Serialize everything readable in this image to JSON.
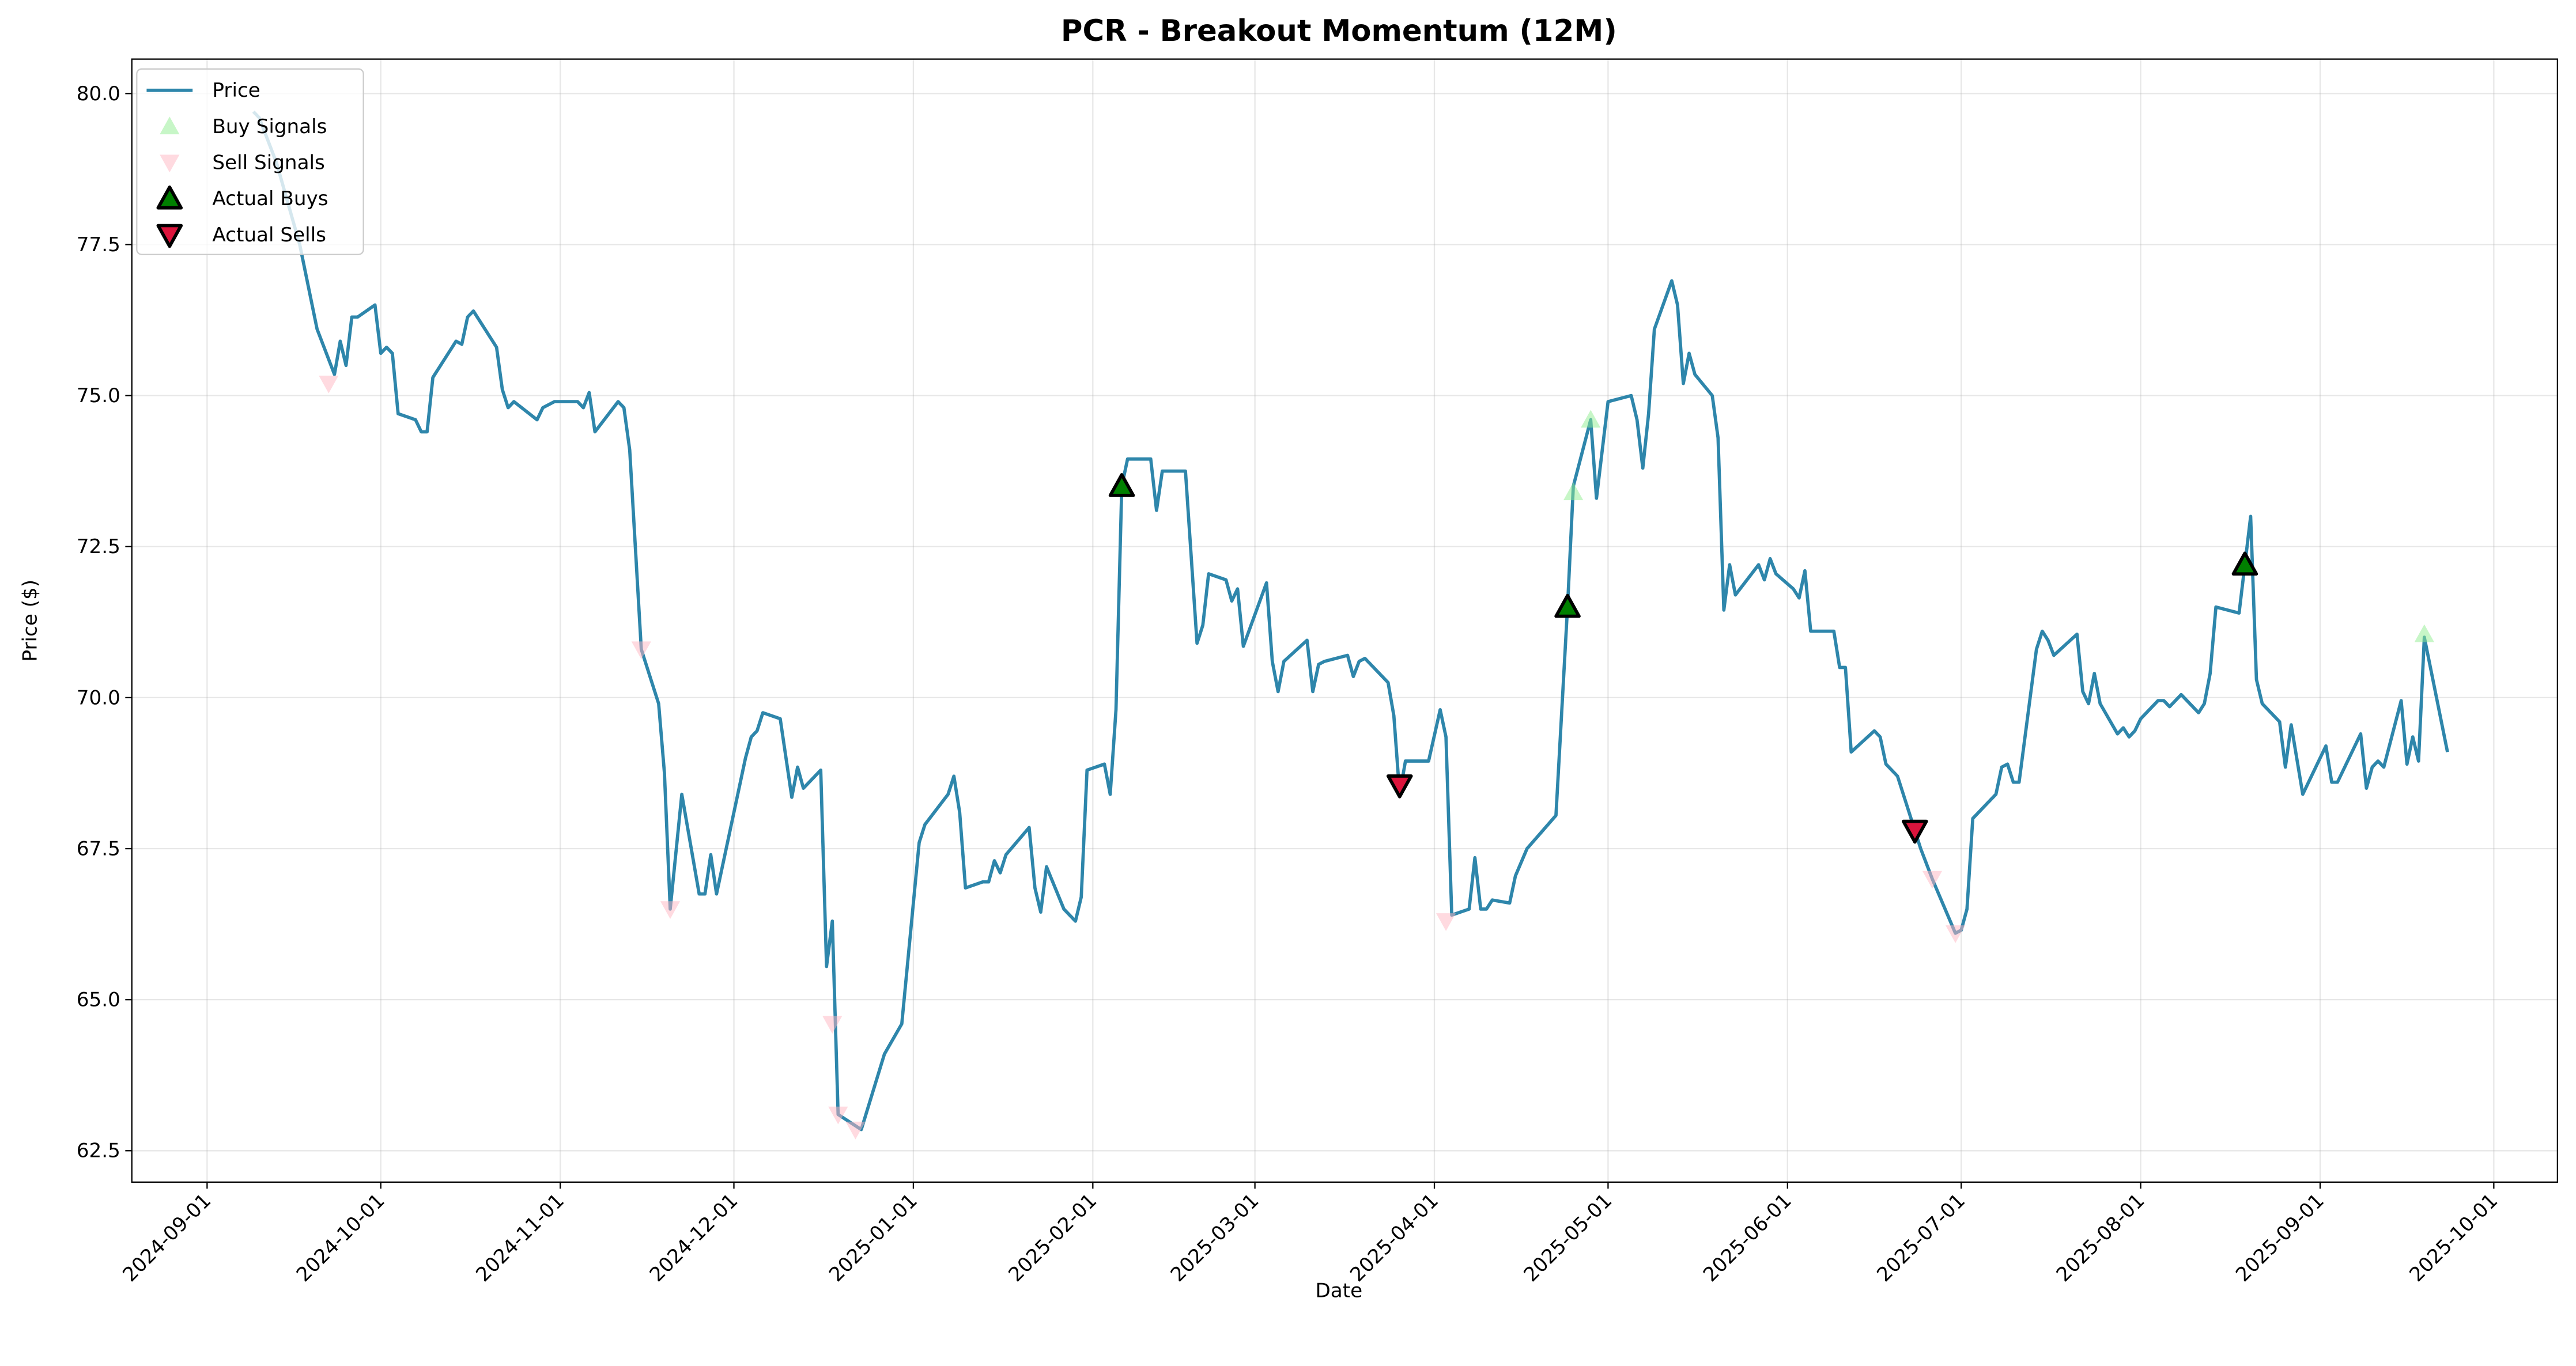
{
  "chart_data": {
    "type": "line",
    "title": "PCR - Breakout Momentum (12M)",
    "xlabel": "Date",
    "ylabel": "Price ($)",
    "xlim": [
      "2024-08-19",
      "2025-10-12"
    ],
    "xticks": [
      "2024-09-01",
      "2024-10-01",
      "2024-11-01",
      "2024-12-01",
      "2025-01-01",
      "2025-02-01",
      "2025-03-01",
      "2025-04-01",
      "2025-05-01",
      "2025-06-01",
      "2025-07-01",
      "2025-08-01",
      "2025-09-01",
      "2025-10-01"
    ],
    "ylim": [
      61.98,
      80.57
    ],
    "yticks": [
      {
        "value": 62.5,
        "label": "62.5"
      },
      {
        "value": 65,
        "label": "65.0"
      },
      {
        "value": 67.5,
        "label": "67.5"
      },
      {
        "value": 70,
        "label": "70.0"
      },
      {
        "value": 72.5,
        "label": "72.5"
      },
      {
        "value": 75,
        "label": "75.0"
      },
      {
        "value": 77.5,
        "label": "77.5"
      },
      {
        "value": 80,
        "label": "80.0"
      }
    ],
    "grid": true,
    "legend": "upper left",
    "series": [
      {
        "name": "Price",
        "type": "line",
        "color": "#2e86ab",
        "x": [
          "2024-09-09",
          "2024-09-10",
          "2024-09-13",
          "2024-09-17",
          "2024-09-20",
          "2024-09-23",
          "2024-09-24",
          "2024-09-25",
          "2024-09-26",
          "2024-09-27",
          "2024-09-30",
          "2024-10-01",
          "2024-10-02",
          "2024-10-03",
          "2024-10-04",
          "2024-10-07",
          "2024-10-08",
          "2024-10-09",
          "2024-10-10",
          "2024-10-14",
          "2024-10-15",
          "2024-10-16",
          "2024-10-17",
          "2024-10-21",
          "2024-10-22",
          "2024-10-23",
          "2024-10-24",
          "2024-10-28",
          "2024-10-29",
          "2024-10-31",
          "2024-11-04",
          "2024-11-05",
          "2024-11-06",
          "2024-11-07",
          "2024-11-11",
          "2024-11-12",
          "2024-11-13",
          "2024-11-15",
          "2024-11-18",
          "2024-11-19",
          "2024-11-20",
          "2024-11-22",
          "2024-11-25",
          "2024-11-26",
          "2024-11-27",
          "2024-11-28",
          "2024-12-03",
          "2024-12-04",
          "2024-12-05",
          "2024-12-06",
          "2024-12-09",
          "2024-12-11",
          "2024-12-12",
          "2024-12-13",
          "2024-12-16",
          "2024-12-17",
          "2024-12-18",
          "2024-12-19",
          "2024-12-23",
          "2024-12-27",
          "2024-12-30",
          "2025-01-02",
          "2025-01-03",
          "2025-01-07",
          "2025-01-08",
          "2025-01-09",
          "2025-01-10",
          "2025-01-13",
          "2025-01-14",
          "2025-01-15",
          "2025-01-16",
          "2025-01-17",
          "2025-01-21",
          "2025-01-22",
          "2025-01-23",
          "2025-01-24",
          "2025-01-27",
          "2025-01-29",
          "2025-01-30",
          "2025-01-31",
          "2025-02-03",
          "2025-02-04",
          "2025-02-05",
          "2025-02-06",
          "2025-02-07",
          "2025-02-10",
          "2025-02-11",
          "2025-02-12",
          "2025-02-13",
          "2025-02-17",
          "2025-02-19",
          "2025-02-20",
          "2025-02-21",
          "2025-02-24",
          "2025-02-25",
          "2025-02-26",
          "2025-02-27",
          "2025-03-03",
          "2025-03-04",
          "2025-03-05",
          "2025-03-06",
          "2025-03-10",
          "2025-03-11",
          "2025-03-12",
          "2025-03-13",
          "2025-03-17",
          "2025-03-18",
          "2025-03-19",
          "2025-03-20",
          "2025-03-24",
          "2025-03-25",
          "2025-03-26",
          "2025-03-27",
          "2025-03-31",
          "2025-04-02",
          "2025-04-03",
          "2025-04-04",
          "2025-04-07",
          "2025-04-08",
          "2025-04-09",
          "2025-04-10",
          "2025-04-11",
          "2025-04-14",
          "2025-04-15",
          "2025-04-17",
          "2025-04-22",
          "2025-04-24",
          "2025-04-25",
          "2025-04-28",
          "2025-04-29",
          "2025-05-01",
          "2025-05-05",
          "2025-05-06",
          "2025-05-07",
          "2025-05-08",
          "2025-05-09",
          "2025-05-12",
          "2025-05-13",
          "2025-05-14",
          "2025-05-15",
          "2025-05-16",
          "2025-05-19",
          "2025-05-20",
          "2025-05-21",
          "2025-05-22",
          "2025-05-23",
          "2025-05-27",
          "2025-05-28",
          "2025-05-29",
          "2025-05-30",
          "2025-06-02",
          "2025-06-03",
          "2025-06-04",
          "2025-06-05",
          "2025-06-09",
          "2025-06-10",
          "2025-06-11",
          "2025-06-12",
          "2025-06-16",
          "2025-06-17",
          "2025-06-18",
          "2025-06-20",
          "2025-06-23",
          "2025-06-24",
          "2025-06-26",
          "2025-06-30",
          "2025-07-01",
          "2025-07-02",
          "2025-07-03",
          "2025-07-07",
          "2025-07-08",
          "2025-07-09",
          "2025-07-10",
          "2025-07-11",
          "2025-07-14",
          "2025-07-15",
          "2025-07-16",
          "2025-07-17",
          "2025-07-21",
          "2025-07-22",
          "2025-07-23",
          "2025-07-24",
          "2025-07-25",
          "2025-07-28",
          "2025-07-29",
          "2025-07-30",
          "2025-07-31",
          "2025-08-01",
          "2025-08-04",
          "2025-08-05",
          "2025-08-06",
          "2025-08-08",
          "2025-08-11",
          "2025-08-12",
          "2025-08-13",
          "2025-08-14",
          "2025-08-18",
          "2025-08-19",
          "2025-08-20",
          "2025-08-21",
          "2025-08-22",
          "2025-08-25",
          "2025-08-26",
          "2025-08-27",
          "2025-08-29",
          "2025-09-02",
          "2025-09-03",
          "2025-09-04",
          "2025-09-05",
          "2025-09-08",
          "2025-09-09",
          "2025-09-10",
          "2025-09-11",
          "2025-09-12",
          "2025-09-15",
          "2025-09-16",
          "2025-09-17",
          "2025-09-18",
          "2025-09-19",
          "2025-09-23"
        ],
        "values": [
          79.7,
          79.6,
          78.85,
          77.5,
          76.1,
          75.35,
          75.9,
          75.5,
          76.3,
          76.3,
          76.5,
          75.7,
          75.8,
          75.7,
          74.7,
          74.6,
          74.4,
          74.4,
          75.3,
          75.9,
          75.85,
          76.3,
          76.4,
          75.8,
          75.1,
          74.8,
          74.9,
          74.6,
          74.8,
          74.9,
          74.9,
          74.8,
          75.05,
          74.4,
          74.9,
          74.8,
          74.1,
          70.8,
          69.9,
          68.75,
          66.5,
          68.4,
          66.75,
          66.75,
          67.4,
          66.75,
          69.0,
          69.35,
          69.45,
          69.75,
          69.65,
          68.35,
          68.85,
          68.5,
          68.8,
          65.55,
          66.3,
          63.1,
          62.85,
          64.1,
          64.6,
          67.6,
          67.9,
          68.4,
          68.7,
          68.1,
          66.85,
          66.95,
          66.95,
          67.3,
          67.1,
          67.4,
          67.85,
          66.85,
          66.45,
          67.2,
          66.5,
          66.3,
          66.7,
          68.8,
          68.9,
          68.4,
          69.8,
          73.5,
          73.95,
          73.95,
          73.95,
          73.1,
          73.75,
          73.75,
          70.9,
          71.2,
          72.05,
          71.95,
          71.6,
          71.8,
          70.85,
          71.9,
          70.6,
          70.1,
          70.6,
          70.95,
          70.1,
          70.55,
          70.6,
          70.7,
          70.35,
          70.6,
          70.65,
          70.25,
          69.7,
          68.4,
          68.95,
          68.95,
          69.8,
          69.35,
          66.4,
          66.5,
          67.35,
          66.5,
          66.5,
          66.65,
          66.6,
          67.05,
          67.5,
          68.05,
          71.5,
          73.5,
          74.6,
          73.3,
          74.9,
          75.0,
          74.6,
          73.8,
          74.7,
          76.1,
          76.9,
          76.5,
          75.2,
          75.7,
          75.35,
          75.0,
          74.3,
          71.45,
          72.2,
          71.7,
          72.2,
          71.95,
          72.3,
          72.05,
          71.8,
          71.65,
          72.1,
          71.1,
          71.1,
          70.5,
          70.5,
          69.1,
          69.45,
          69.35,
          68.9,
          68.7,
          67.8,
          67.5,
          67.0,
          66.1,
          66.15,
          66.5,
          68.0,
          68.4,
          68.85,
          68.9,
          68.6,
          68.6,
          70.8,
          71.1,
          70.95,
          70.7,
          71.05,
          70.1,
          69.9,
          70.4,
          69.9,
          69.4,
          69.5,
          69.35,
          69.45,
          69.65,
          69.95,
          69.95,
          69.85,
          70.05,
          69.75,
          69.9,
          70.4,
          71.5,
          71.4,
          72.2,
          73.0,
          70.3,
          69.9,
          69.6,
          68.85,
          69.55,
          68.4,
          69.2,
          68.6,
          68.6,
          68.8,
          69.4,
          68.5,
          68.85,
          68.95,
          68.85,
          69.95,
          68.9,
          69.35,
          68.95,
          71.0,
          69.1
        ]
      },
      {
        "name": "Buy Signals",
        "type": "scatter",
        "marker": "^",
        "color": "#90ee90",
        "opacity": 0.5,
        "x": [
          "2025-04-25",
          "2025-04-28",
          "2025-09-19"
        ],
        "values": [
          73.4,
          74.6,
          71.05
        ]
      },
      {
        "name": "Sell Signals",
        "type": "scatter",
        "marker": "v",
        "color": "#ffb6c1",
        "opacity": 0.5,
        "x": [
          "2024-09-22",
          "2024-11-15",
          "2024-11-20",
          "2024-12-18",
          "2024-12-19",
          "2024-12-22",
          "2025-04-03",
          "2025-06-26",
          "2025-06-30"
        ],
        "values": [
          75.2,
          70.8,
          66.5,
          64.6,
          63.1,
          62.85,
          66.3,
          67.0,
          66.1
        ]
      },
      {
        "name": "Actual Buys",
        "type": "scatter",
        "marker": "^",
        "color": "#008000",
        "edgecolor": "#000000",
        "x": [
          "2025-02-06",
          "2025-04-24",
          "2025-08-19"
        ],
        "values": [
          73.5,
          71.5,
          72.2
        ]
      },
      {
        "name": "Actual Sells",
        "type": "scatter",
        "marker": "v",
        "color": "#dc143c",
        "edgecolor": "#000000",
        "x": [
          "2025-03-26",
          "2025-06-23"
        ],
        "values": [
          68.55,
          67.8
        ]
      }
    ]
  }
}
